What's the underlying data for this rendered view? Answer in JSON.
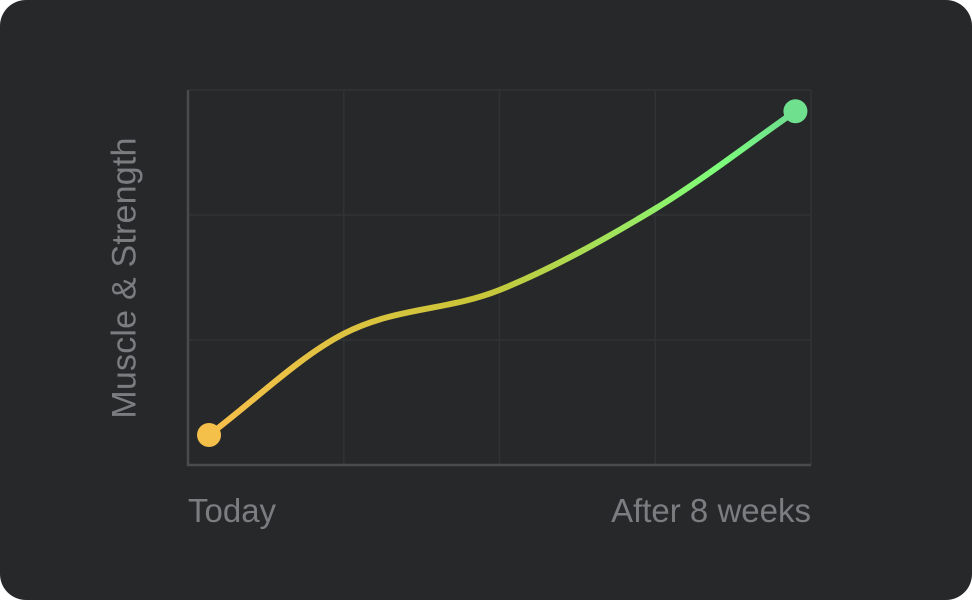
{
  "chart_data": {
    "type": "line",
    "title": "",
    "xlabel": "",
    "ylabel": "Muscle & Strength",
    "x_tick_labels": [
      "Today",
      "After 8 weeks"
    ],
    "grid": true,
    "legend": "none",
    "xlim": [
      0,
      8
    ],
    "ylim": [
      0,
      3
    ],
    "series": [
      {
        "x": [
          0.27,
          2.0,
          4.0,
          6.0,
          7.8
        ],
        "y": [
          0.24,
          1.05,
          1.4,
          2.05,
          2.83
        ],
        "color_start": "#f5c04a",
        "color_end": "#6fe08d",
        "mid_color": "#c9c538",
        "peak_color": "#7dff7b"
      }
    ]
  }
}
